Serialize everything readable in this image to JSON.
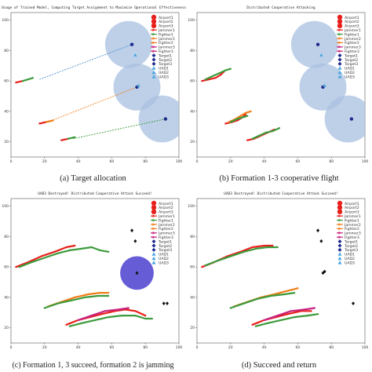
{
  "captions": [
    "(a) Target allocation",
    "(b) Formation 1-3 cooperative flight",
    "(c) Formation 1, 3 succeed, formation 2 is jamming",
    "(d) Succeed and return"
  ],
  "colors": {
    "traj_red": "#e8201c",
    "traj_orange": "#f07d18",
    "traj_green": "#3c9b3c",
    "traj_magenta": "#c8227e",
    "assign_line": "#f07d18",
    "assign_line_blue": "#4c8fd0",
    "zone": "#a8c0e0",
    "zone_jamming": "#4b3fcf",
    "target_dark": "#1d2a8c",
    "target_light": "#4da6e0"
  },
  "chart_data": [
    {
      "type": "scatter",
      "panel": "a",
      "title": "Usage of Trained Model, Computing Target Assignment to Maximize Operational Effectiveness.",
      "xlim": [
        0,
        100
      ],
      "ylim": [
        10,
        105
      ],
      "xticks": [
        0,
        20,
        40,
        60,
        80,
        100
      ],
      "yticks": [
        20,
        40,
        60,
        80,
        100
      ],
      "legend": [
        "Airport1",
        "Airport2",
        "Airport3",
        "Jammer1",
        "Fighter1",
        "Jammer2",
        "Fighter2",
        "Jammer3",
        "Fighter3",
        "Target1",
        "Target2",
        "Target3",
        "UAD1",
        "UAD2",
        "UAD3"
      ],
      "legend_placement": "top-right",
      "zones": [
        {
          "x": 70,
          "y": 84,
          "r": 14
        },
        {
          "x": 75,
          "y": 56,
          "r": 14
        },
        {
          "x": 90,
          "y": 35,
          "r": 14
        }
      ],
      "targets": [
        {
          "x": 72,
          "y": 84
        },
        {
          "x": 74,
          "y": 77
        },
        {
          "x": 75,
          "y": 56
        },
        {
          "x": 76,
          "y": 57
        },
        {
          "x": 92,
          "y": 35
        }
      ],
      "assign_lines": [
        {
          "from": [
            17,
            61
          ],
          "to": [
            72,
            84
          ]
        },
        {
          "from": [
            22,
            33
          ],
          "to": [
            75,
            56
          ]
        },
        {
          "from": [
            37,
            22
          ],
          "to": [
            92,
            35
          ]
        }
      ],
      "trajectories": [
        {
          "color": "red",
          "points": [
            [
              3,
              59
            ],
            [
              7,
              60
            ]
          ]
        },
        {
          "color": "green",
          "points": [
            [
              7,
              60
            ],
            [
              13,
              62
            ]
          ]
        },
        {
          "color": "red",
          "points": [
            [
              17,
              32
            ],
            [
              21,
              33
            ]
          ]
        },
        {
          "color": "orange",
          "points": [
            [
              21,
              33
            ],
            [
              25,
              34
            ]
          ]
        },
        {
          "color": "red",
          "points": [
            [
              30,
              21
            ],
            [
              34,
              22
            ]
          ]
        },
        {
          "color": "green",
          "points": [
            [
              34,
              22
            ],
            [
              38,
              23
            ]
          ]
        }
      ]
    },
    {
      "type": "scatter",
      "panel": "b",
      "title": "Distributed Cooperative Attacking",
      "xlim": [
        0,
        100
      ],
      "ylim": [
        10,
        105
      ],
      "xticks": [
        0,
        20,
        40,
        60,
        80,
        100
      ],
      "yticks": [
        20,
        40,
        60,
        80,
        100
      ],
      "legend": [
        "Airport1",
        "Airport2",
        "Airport3",
        "Jammer1",
        "Fighter1",
        "Jammer2",
        "Fighter2",
        "Jammer3",
        "Fighter3",
        "Target1",
        "Target2",
        "Target3",
        "UAD1",
        "UAD2",
        "UAD3"
      ],
      "legend_placement": "top-right",
      "zones": [
        {
          "x": 70,
          "y": 84,
          "r": 14
        },
        {
          "x": 75,
          "y": 56,
          "r": 14
        },
        {
          "x": 90,
          "y": 35,
          "r": 14
        }
      ],
      "targets": [
        {
          "x": 72,
          "y": 84
        },
        {
          "x": 74,
          "y": 77
        },
        {
          "x": 75,
          "y": 56
        },
        {
          "x": 76,
          "y": 57
        },
        {
          "x": 92,
          "y": 35
        }
      ],
      "assign_lines": [],
      "trajectories": [
        {
          "color": "red",
          "points": [
            [
              3,
              60
            ],
            [
              7,
              61
            ],
            [
              11,
              62
            ],
            [
              14,
              64
            ],
            [
              16,
              66
            ]
          ]
        },
        {
          "color": "green",
          "points": [
            [
              5,
              61
            ],
            [
              9,
              63
            ],
            [
              13,
              65
            ],
            [
              17,
              67
            ],
            [
              20,
              68
            ]
          ]
        },
        {
          "color": "red",
          "points": [
            [
              17,
              32
            ],
            [
              21,
              33
            ],
            [
              24,
              34
            ],
            [
              27,
              36
            ],
            [
              29,
              38
            ]
          ]
        },
        {
          "color": "orange",
          "points": [
            [
              19,
              33
            ],
            [
              23,
              35
            ],
            [
              26,
              37
            ],
            [
              29,
              39
            ],
            [
              32,
              40
            ]
          ]
        },
        {
          "color": "green",
          "points": [
            [
              20,
              33
            ],
            [
              24,
              35
            ],
            [
              27,
              36
            ],
            [
              30,
              37
            ]
          ]
        },
        {
          "color": "red",
          "points": [
            [
              30,
              21
            ],
            [
              34,
              22
            ],
            [
              38,
              24
            ],
            [
              42,
              26
            ],
            [
              46,
              28
            ]
          ]
        },
        {
          "color": "green",
          "points": [
            [
              33,
              22
            ],
            [
              37,
              24
            ],
            [
              41,
              26
            ],
            [
              45,
              27
            ],
            [
              49,
              29
            ]
          ]
        }
      ]
    },
    {
      "type": "scatter",
      "panel": "c",
      "title": "UAD3 Destroyed! Distributed Cooperative Attack Succeed!",
      "xlim": [
        0,
        100
      ],
      "ylim": [
        10,
        105
      ],
      "xticks": [
        0,
        20,
        40,
        60,
        80,
        100
      ],
      "yticks": [
        20,
        40,
        60,
        80,
        100
      ],
      "legend": [
        "Airport1",
        "Airport2",
        "Airport3",
        "Jammer1",
        "Fighter1",
        "Jammer2",
        "Fighter2",
        "Jammer3",
        "Fighter3",
        "Target1",
        "Target2",
        "Target3",
        "UAD1",
        "UAD2",
        "UAD3"
      ],
      "legend_placement": "top-right",
      "zones": [
        {
          "x": 75,
          "y": 56,
          "r": 10,
          "jamming": true
        }
      ],
      "targets": [
        {
          "x": 72,
          "y": 84
        },
        {
          "x": 74,
          "y": 77
        },
        {
          "x": 75,
          "y": 56
        },
        {
          "x": 91,
          "y": 36
        },
        {
          "x": 93,
          "y": 36
        }
      ],
      "assign_lines": [],
      "trajectories": [
        {
          "color": "red",
          "points": [
            [
              3,
              60
            ],
            [
              10,
              63
            ],
            [
              18,
              67
            ],
            [
              26,
              70
            ],
            [
              33,
              73
            ],
            [
              38,
              74
            ]
          ]
        },
        {
          "color": "green",
          "points": [
            [
              5,
              60
            ],
            [
              12,
              63
            ],
            [
              20,
              66
            ],
            [
              28,
              69
            ],
            [
              35,
              71
            ],
            [
              42,
              72
            ],
            [
              48,
              73
            ],
            [
              53,
              71
            ],
            [
              58,
              70
            ]
          ]
        },
        {
          "color": "orange",
          "points": [
            [
              22,
              34
            ],
            [
              30,
              37
            ],
            [
              38,
              40
            ],
            [
              46,
              42
            ],
            [
              53,
              43
            ],
            [
              58,
              43
            ]
          ]
        },
        {
          "color": "green",
          "points": [
            [
              20,
              33
            ],
            [
              28,
              36
            ],
            [
              36,
              38
            ],
            [
              44,
              40
            ],
            [
              52,
              41
            ],
            [
              58,
              41
            ]
          ]
        },
        {
          "color": "red",
          "points": [
            [
              33,
              22
            ],
            [
              40,
              25
            ],
            [
              47,
              27
            ],
            [
              54,
              29
            ],
            [
              62,
              31
            ],
            [
              68,
              32
            ],
            [
              74,
              31
            ],
            [
              80,
              28
            ]
          ]
        },
        {
          "color": "green",
          "points": [
            [
              35,
              21
            ],
            [
              42,
              23
            ],
            [
              50,
              25
            ],
            [
              58,
              27
            ],
            [
              66,
              28
            ],
            [
              74,
              28
            ],
            [
              80,
              26
            ],
            [
              84,
              26
            ]
          ]
        },
        {
          "color": "magenta",
          "points": [
            [
              40,
              25
            ],
            [
              48,
              28
            ],
            [
              56,
              31
            ],
            [
              64,
              32
            ],
            [
              70,
              33
            ]
          ]
        }
      ]
    },
    {
      "type": "scatter",
      "panel": "d",
      "title": "UAD3 Destroyed! Distributed Cooperative Attack Succeed!",
      "xlim": [
        0,
        100
      ],
      "ylim": [
        10,
        105
      ],
      "xticks": [
        0,
        20,
        40,
        60,
        80,
        100
      ],
      "yticks": [
        20,
        40,
        60,
        80,
        100
      ],
      "legend": [
        "Airport1",
        "Airport2",
        "Airport3",
        "Jammer1",
        "Fighter1",
        "Jammer2",
        "Fighter2",
        "Jammer3",
        "Fighter3",
        "Target1",
        "Target2",
        "Target3",
        "UAD1",
        "UAD2",
        "UAD3"
      ],
      "legend_placement": "top-right",
      "zones": [],
      "targets": [
        {
          "x": 72,
          "y": 84
        },
        {
          "x": 74,
          "y": 77
        },
        {
          "x": 75,
          "y": 56
        },
        {
          "x": 76,
          "y": 57
        },
        {
          "x": 93,
          "y": 36
        }
      ],
      "assign_lines": [],
      "trajectories": [
        {
          "color": "red",
          "points": [
            [
              3,
              60
            ],
            [
              10,
              63
            ],
            [
              18,
              67
            ],
            [
              26,
              70
            ],
            [
              33,
              73
            ],
            [
              40,
              74
            ],
            [
              45,
              74
            ]
          ]
        },
        {
          "color": "green",
          "points": [
            [
              5,
              61
            ],
            [
              12,
              64
            ],
            [
              20,
              67
            ],
            [
              28,
              70
            ],
            [
              35,
              72
            ],
            [
              42,
              73
            ],
            [
              48,
              73
            ]
          ]
        },
        {
          "color": "orange",
          "points": [
            [
              22,
              34
            ],
            [
              30,
              37
            ],
            [
              38,
              40
            ],
            [
              46,
              42
            ],
            [
              53,
              44
            ],
            [
              60,
              46
            ]
          ]
        },
        {
          "color": "green",
          "points": [
            [
              20,
              33
            ],
            [
              28,
              36
            ],
            [
              36,
              39
            ],
            [
              44,
              41
            ],
            [
              52,
              42
            ],
            [
              58,
              43
            ]
          ]
        },
        {
          "color": "red",
          "points": [
            [
              33,
              22
            ],
            [
              40,
              25
            ],
            [
              47,
              27
            ],
            [
              54,
              29
            ],
            [
              62,
              31
            ],
            [
              68,
              31
            ]
          ]
        },
        {
          "color": "green",
          "points": [
            [
              35,
              21
            ],
            [
              42,
              23
            ],
            [
              50,
              25
            ],
            [
              58,
              27
            ],
            [
              66,
              28
            ],
            [
              72,
              29
            ]
          ]
        },
        {
          "color": "magenta",
          "points": [
            [
              40,
              25
            ],
            [
              48,
              28
            ],
            [
              56,
              31
            ],
            [
              64,
              32
            ],
            [
              70,
              33
            ]
          ]
        }
      ]
    }
  ]
}
